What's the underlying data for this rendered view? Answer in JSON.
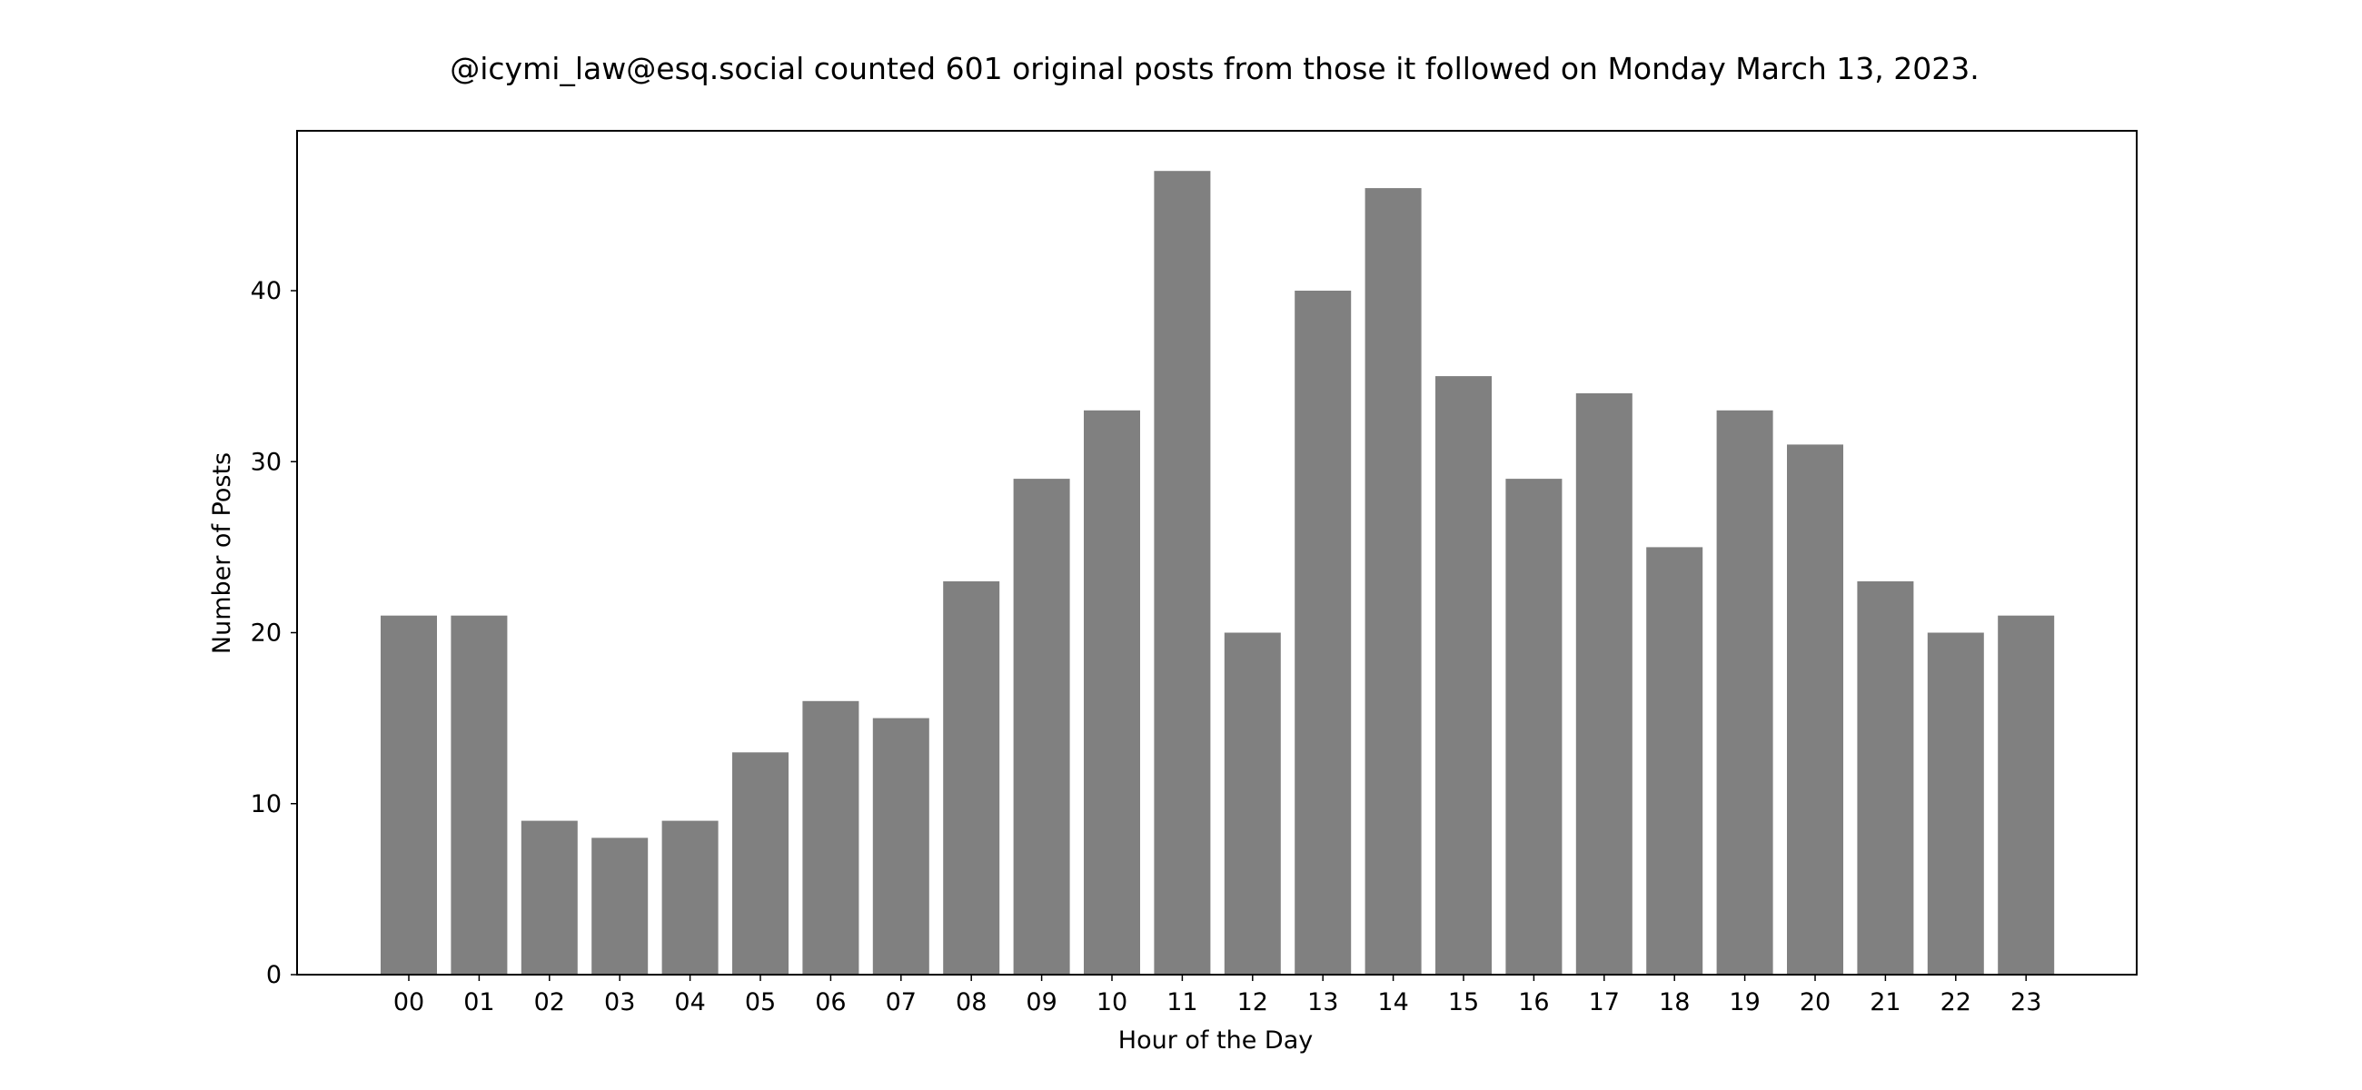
{
  "chart_data": {
    "type": "bar",
    "title": "@icymi_law@esq.social counted 601 original posts from those it followed on Monday March 13, 2023.",
    "xlabel": "Hour of the Day",
    "ylabel": "Number of Posts",
    "categories": [
      "00",
      "01",
      "02",
      "03",
      "04",
      "05",
      "06",
      "07",
      "08",
      "09",
      "10",
      "11",
      "12",
      "13",
      "14",
      "15",
      "16",
      "17",
      "18",
      "19",
      "20",
      "21",
      "22",
      "23"
    ],
    "values": [
      21,
      21,
      9,
      8,
      9,
      13,
      16,
      15,
      23,
      29,
      33,
      47,
      20,
      40,
      46,
      35,
      29,
      34,
      25,
      33,
      31,
      23,
      20,
      21
    ],
    "ylim": [
      0,
      49.35
    ],
    "yticks": [
      0,
      10,
      20,
      30,
      40
    ],
    "grid": false,
    "legend": "none",
    "bar_color": "#808080"
  }
}
